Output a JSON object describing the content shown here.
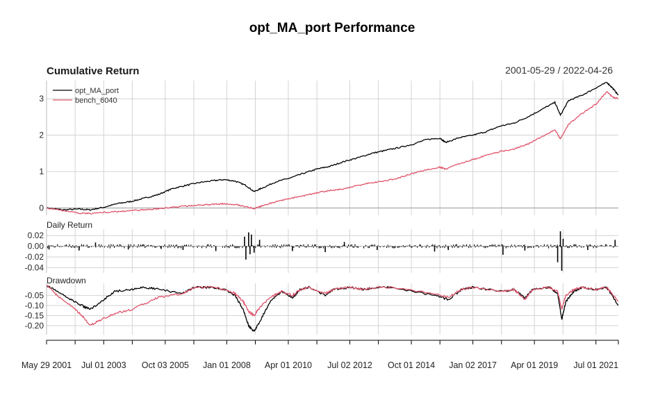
{
  "title": "opt_MA_port Performance",
  "date_range": "2001-05-29 / 2022-04-26",
  "colors": {
    "opt_MA_port": "#000000",
    "bench_6040": "#DF536B",
    "grid": "#d3d3d3"
  },
  "chart_data": [
    {
      "type": "line",
      "title": "Cumulative Return",
      "legend_position": "top-left",
      "ylim": [
        -0.2,
        3.5
      ],
      "yticks": [
        0,
        1,
        2,
        3
      ],
      "series": [
        {
          "name": "opt_MA_port",
          "x": [
            2001.41,
            2002.0,
            2002.6,
            2003.0,
            2003.5,
            2004.0,
            2004.5,
            2005.0,
            2005.5,
            2006.0,
            2006.5,
            2007.0,
            2007.5,
            2007.9,
            2008.3,
            2008.7,
            2009.0,
            2009.3,
            2009.8,
            2010.3,
            2010.8,
            2011.3,
            2011.8,
            2012.3,
            2012.8,
            2013.3,
            2013.8,
            2014.3,
            2014.8,
            2015.3,
            2015.8,
            2016.0,
            2016.5,
            2017.0,
            2017.5,
            2018.0,
            2018.5,
            2019.0,
            2019.5,
            2020.0,
            2020.2,
            2020.5,
            2021.0,
            2021.5,
            2021.9,
            2022.1,
            2022.32
          ],
          "y": [
            0.0,
            -0.05,
            -0.03,
            -0.05,
            0.02,
            0.12,
            0.18,
            0.27,
            0.37,
            0.53,
            0.62,
            0.7,
            0.75,
            0.78,
            0.74,
            0.62,
            0.45,
            0.55,
            0.72,
            0.82,
            0.95,
            1.07,
            1.15,
            1.28,
            1.38,
            1.5,
            1.58,
            1.66,
            1.75,
            1.88,
            1.92,
            1.8,
            1.93,
            2.0,
            2.1,
            2.25,
            2.33,
            2.5,
            2.7,
            2.9,
            2.55,
            2.95,
            3.1,
            3.3,
            3.45,
            3.3,
            3.1
          ]
        },
        {
          "name": "bench_6040",
          "x": [
            2001.41,
            2002.0,
            2002.6,
            2003.0,
            2003.5,
            2004.0,
            2004.5,
            2005.0,
            2005.5,
            2006.0,
            2006.5,
            2007.0,
            2007.5,
            2007.9,
            2008.3,
            2008.7,
            2009.0,
            2009.3,
            2009.8,
            2010.3,
            2010.8,
            2011.3,
            2011.8,
            2012.3,
            2012.8,
            2013.3,
            2013.8,
            2014.3,
            2014.8,
            2015.3,
            2015.8,
            2016.0,
            2016.5,
            2017.0,
            2017.5,
            2018.0,
            2018.5,
            2019.0,
            2019.5,
            2020.0,
            2020.2,
            2020.5,
            2021.0,
            2021.5,
            2021.9,
            2022.1,
            2022.32
          ],
          "y": [
            0.0,
            -0.07,
            -0.14,
            -0.15,
            -0.12,
            -0.1,
            -0.07,
            -0.05,
            -0.02,
            0.02,
            0.05,
            0.08,
            0.1,
            0.12,
            0.1,
            0.04,
            -0.02,
            0.06,
            0.18,
            0.26,
            0.33,
            0.42,
            0.48,
            0.53,
            0.62,
            0.7,
            0.74,
            0.83,
            0.95,
            1.05,
            1.12,
            1.07,
            1.22,
            1.33,
            1.45,
            1.55,
            1.62,
            1.75,
            1.95,
            2.15,
            1.9,
            2.3,
            2.6,
            2.85,
            3.2,
            3.05,
            3.0
          ]
        }
      ]
    },
    {
      "type": "bar",
      "title": "Daily Return",
      "ylim": [
        -0.05,
        0.032
      ],
      "yticks": [
        0.02,
        0.0,
        -0.02,
        -0.04
      ],
      "ytick_labels": [
        "0.02",
        "0.00",
        "-0.02",
        "-0.04"
      ],
      "series": [
        {
          "name": "opt_MA_port",
          "x": [
            2001.5,
            2002.6,
            2003.2,
            2004.4,
            2005.6,
            2006.4,
            2007.6,
            2008.65,
            2008.7,
            2008.8,
            2008.85,
            2008.9,
            2009.0,
            2009.2,
            2010.4,
            2011.6,
            2012.3,
            2013.5,
            2015.6,
            2016.1,
            2018.1,
            2018.9,
            2020.1,
            2020.2,
            2020.25,
            2020.3,
            2021.2,
            2022.2
          ],
          "y": [
            -0.006,
            -0.008,
            0.007,
            -0.006,
            -0.005,
            -0.007,
            -0.009,
            0.018,
            -0.025,
            0.026,
            -0.015,
            0.022,
            -0.012,
            0.012,
            -0.009,
            -0.011,
            0.008,
            -0.007,
            -0.01,
            -0.007,
            -0.016,
            -0.008,
            -0.03,
            0.028,
            -0.046,
            0.014,
            -0.007,
            0.012
          ]
        }
      ]
    },
    {
      "type": "line",
      "title": "Drawdown",
      "ylim": [
        -0.245,
        0.01
      ],
      "yticks": [
        -0.05,
        -0.1,
        -0.15,
        -0.2
      ],
      "ytick_labels": [
        "-0.05",
        "-0.10",
        "-0.15",
        "-0.20"
      ],
      "series": [
        {
          "name": "opt_MA_port",
          "x": [
            2001.41,
            2001.8,
            2002.3,
            2002.7,
            2003.0,
            2003.4,
            2003.9,
            2004.5,
            2005.0,
            2005.5,
            2006.4,
            2006.8,
            2007.5,
            2007.9,
            2008.3,
            2008.6,
            2008.8,
            2009.0,
            2009.2,
            2009.6,
            2010.0,
            2010.4,
            2010.7,
            2011.0,
            2011.6,
            2011.9,
            2012.5,
            2013.0,
            2013.5,
            2014.0,
            2015.6,
            2016.1,
            2016.6,
            2017.0,
            2018.1,
            2018.5,
            2018.9,
            2019.2,
            2019.8,
            2020.1,
            2020.25,
            2020.4,
            2020.7,
            2021.0,
            2021.5,
            2021.9,
            2022.32
          ],
          "y": [
            0.0,
            -0.03,
            -0.07,
            -0.1,
            -0.12,
            -0.08,
            -0.03,
            -0.02,
            -0.01,
            -0.02,
            -0.04,
            -0.01,
            -0.01,
            -0.02,
            -0.05,
            -0.12,
            -0.2,
            -0.23,
            -0.18,
            -0.08,
            -0.03,
            -0.06,
            -0.02,
            -0.01,
            -0.05,
            -0.02,
            -0.01,
            -0.02,
            -0.01,
            -0.01,
            -0.05,
            -0.07,
            -0.02,
            -0.01,
            -0.03,
            -0.02,
            -0.06,
            -0.02,
            -0.01,
            -0.04,
            -0.17,
            -0.08,
            -0.03,
            -0.01,
            -0.02,
            -0.01,
            -0.1
          ]
        },
        {
          "name": "bench_6040",
          "x": [
            2001.41,
            2001.8,
            2002.3,
            2002.7,
            2003.0,
            2003.4,
            2003.9,
            2004.5,
            2005.0,
            2005.5,
            2006.4,
            2006.8,
            2007.5,
            2007.9,
            2008.3,
            2008.6,
            2008.8,
            2009.0,
            2009.2,
            2009.6,
            2010.0,
            2010.4,
            2010.7,
            2011.0,
            2011.6,
            2011.9,
            2012.5,
            2013.0,
            2013.5,
            2014.0,
            2015.6,
            2016.1,
            2016.6,
            2017.0,
            2018.1,
            2018.5,
            2018.9,
            2019.2,
            2019.8,
            2020.1,
            2020.25,
            2020.4,
            2020.7,
            2021.0,
            2021.5,
            2021.9,
            2022.32
          ],
          "y": [
            0.0,
            -0.05,
            -0.1,
            -0.15,
            -0.2,
            -0.17,
            -0.14,
            -0.12,
            -0.09,
            -0.06,
            -0.04,
            -0.01,
            -0.01,
            -0.02,
            -0.04,
            -0.08,
            -0.13,
            -0.15,
            -0.11,
            -0.06,
            -0.03,
            -0.05,
            -0.02,
            -0.01,
            -0.04,
            -0.02,
            -0.01,
            -0.02,
            -0.01,
            -0.01,
            -0.04,
            -0.06,
            -0.02,
            -0.01,
            -0.03,
            -0.02,
            -0.07,
            -0.02,
            -0.01,
            -0.03,
            -0.12,
            -0.05,
            -0.02,
            -0.01,
            -0.02,
            -0.01,
            -0.08
          ]
        }
      ]
    }
  ],
  "x_axis": {
    "ticks": [
      2001.41,
      2003.5,
      2005.75,
      2008.0,
      2010.25,
      2012.5,
      2014.75,
      2017.0,
      2019.25,
      2021.5
    ],
    "labels": [
      "May 29 2001",
      "Jul 01 2003",
      "Oct 03 2005",
      "Jan 01 2008",
      "Apr 01 2010",
      "Jul 02 2012",
      "Oct 01 2014",
      "Jan 02 2017",
      "Apr 01 2019",
      "Jul 01 2021"
    ],
    "xlim": [
      2001.41,
      2022.32
    ]
  }
}
